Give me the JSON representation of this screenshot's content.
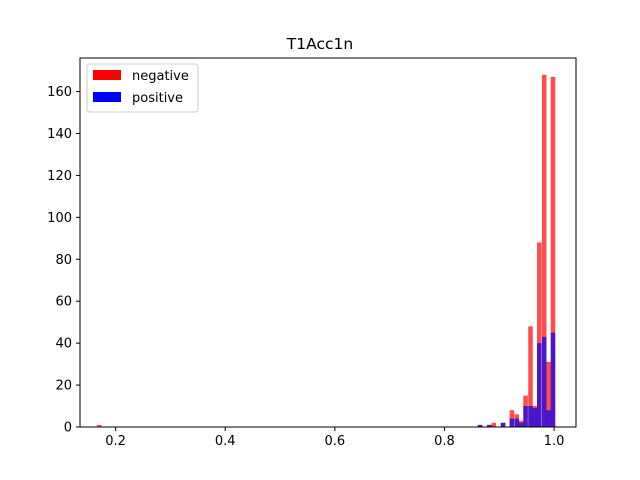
{
  "chart_data": {
    "type": "histogram",
    "title": "T1Acc1n",
    "xlabel": "",
    "ylabel": "",
    "xlim": [
      0.135,
      1.04
    ],
    "ylim": [
      0,
      176
    ],
    "xticks": [
      "0.2",
      "0.4",
      "0.6",
      "0.8",
      "1.0"
    ],
    "yticks": [
      "0",
      "20",
      "40",
      "60",
      "80",
      "100",
      "120",
      "140",
      "160"
    ],
    "grid": false,
    "legend_position": "upper-left",
    "bin_width": 0.0083,
    "series": [
      {
        "name": "negative",
        "color": "#ff0000",
        "opacity": 0.7,
        "bins": [
          {
            "x": 0.17,
            "count": 1
          },
          {
            "x": 0.865,
            "count": 1
          },
          {
            "x": 0.882,
            "count": 1
          },
          {
            "x": 0.89,
            "count": 2
          },
          {
            "x": 0.907,
            "count": 2
          },
          {
            "x": 0.923,
            "count": 8
          },
          {
            "x": 0.932,
            "count": 6
          },
          {
            "x": 0.94,
            "count": 3
          },
          {
            "x": 0.948,
            "count": 15
          },
          {
            "x": 0.957,
            "count": 48
          },
          {
            "x": 0.965,
            "count": 10
          },
          {
            "x": 0.973,
            "count": 88
          },
          {
            "x": 0.982,
            "count": 168
          },
          {
            "x": 0.99,
            "count": 31
          },
          {
            "x": 0.998,
            "count": 167
          }
        ]
      },
      {
        "name": "positive",
        "color": "#0000ff",
        "opacity": 0.7,
        "bins": [
          {
            "x": 0.865,
            "count": 1
          },
          {
            "x": 0.882,
            "count": 1
          },
          {
            "x": 0.907,
            "count": 2
          },
          {
            "x": 0.923,
            "count": 4
          },
          {
            "x": 0.932,
            "count": 4
          },
          {
            "x": 0.94,
            "count": 2
          },
          {
            "x": 0.948,
            "count": 10
          },
          {
            "x": 0.957,
            "count": 10
          },
          {
            "x": 0.965,
            "count": 9
          },
          {
            "x": 0.973,
            "count": 40
          },
          {
            "x": 0.982,
            "count": 43
          },
          {
            "x": 0.99,
            "count": 8
          },
          {
            "x": 0.998,
            "count": 45
          }
        ]
      }
    ]
  }
}
